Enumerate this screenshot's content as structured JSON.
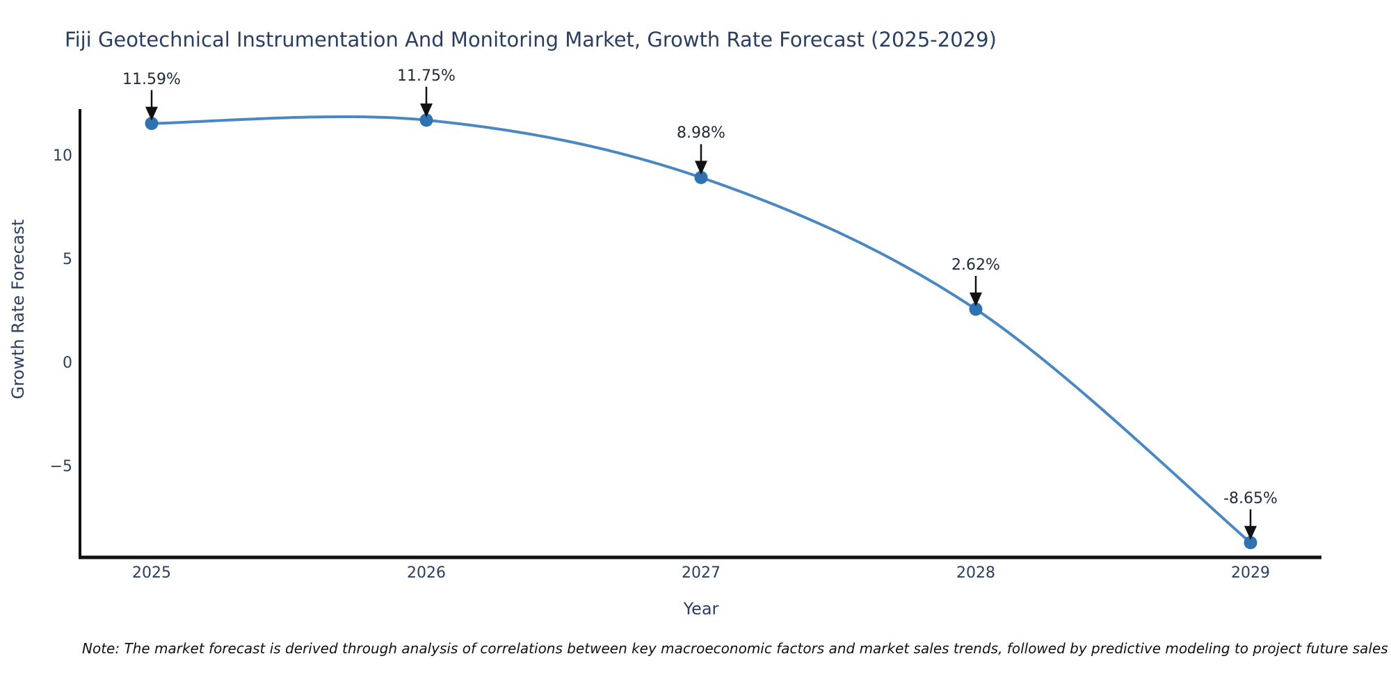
{
  "chart_data": {
    "type": "line",
    "title": "Fiji Geotechnical Instrumentation And Monitoring Market, Growth Rate Forecast (2025-2029)",
    "xlabel": "Year",
    "ylabel": "Growth Rate Forecast",
    "x": [
      2025,
      2026,
      2027,
      2028,
      2029
    ],
    "values": [
      11.59,
      11.75,
      8.98,
      2.62,
      -8.65
    ],
    "point_labels": [
      "11.59%",
      "11.75%",
      "8.98%",
      "2.62%",
      "-8.65%"
    ],
    "yticks": [
      10,
      5,
      0,
      -5
    ],
    "ylim": [
      -9.4,
      12.3
    ],
    "xlim": [
      2024.74,
      2029.26
    ],
    "grid": false,
    "legend": "none",
    "line_shape": "spline",
    "note": "Note: The market forecast is derived through analysis of correlations between key macroeconomic factors and market sales trends, followed by predictive modeling to project future sales",
    "colors": {
      "line": "#4b87c0",
      "marker": "#2f72b2",
      "axis": "#111111",
      "arrow": "#111111",
      "text": "#2a3f5f",
      "annotation": "#1f2937",
      "note_text": "#111111",
      "background": "#ffffff"
    }
  }
}
